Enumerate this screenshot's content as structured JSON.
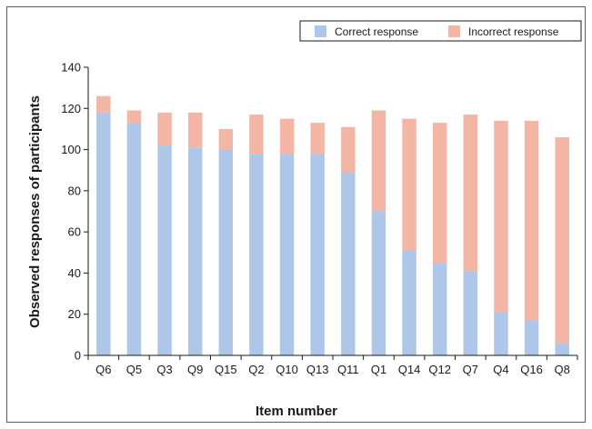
{
  "chart_data": {
    "type": "bar",
    "stacked": true,
    "categories": [
      "Q6",
      "Q5",
      "Q3",
      "Q9",
      "Q15",
      "Q2",
      "Q10",
      "Q13",
      "Q11",
      "Q1",
      "Q14",
      "Q12",
      "Q7",
      "Q4",
      "Q16",
      "Q8"
    ],
    "series": [
      {
        "name": "Correct response",
        "color": "#aec7e8",
        "values": [
          118,
          113,
          102,
          101,
          100,
          98,
          98,
          98,
          89,
          70,
          51,
          45,
          41,
          21,
          17,
          6
        ]
      },
      {
        "name": "Incorrect response",
        "color": "#f4b6a4",
        "values": [
          8,
          6,
          16,
          17,
          10,
          19,
          17,
          15,
          22,
          49,
          64,
          68,
          76,
          93,
          97,
          100
        ]
      }
    ],
    "xlabel": "Item number",
    "ylabel": "Observed responses of participants",
    "ylim": [
      0,
      140
    ],
    "yticks": [
      "0",
      "20",
      "40",
      "60",
      "80",
      "100",
      "120",
      "140"
    ],
    "grid": false,
    "legend_position": "top-right"
  }
}
